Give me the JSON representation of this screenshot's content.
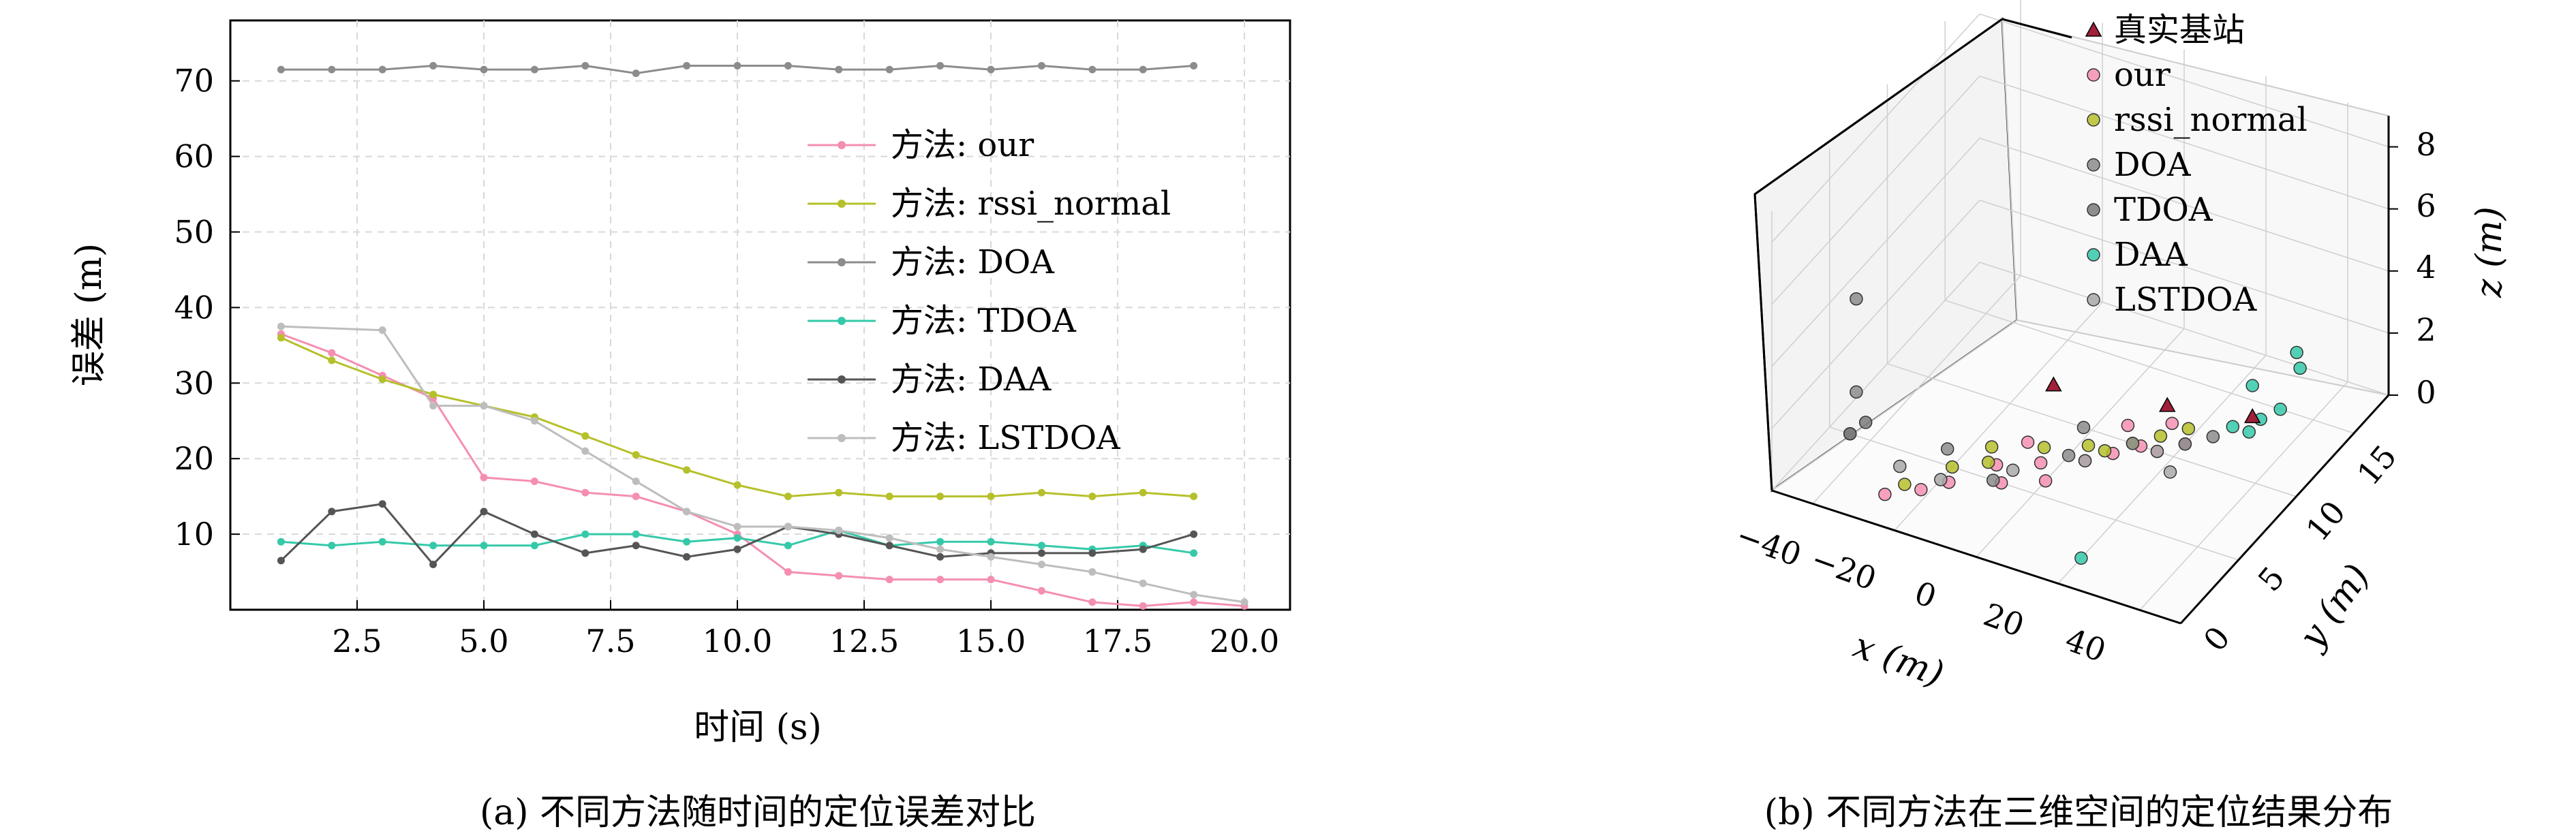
{
  "chart_data": [
    {
      "type": "line",
      "xlabel": "时间 (s)",
      "ylabel": "误差 (m)",
      "caption": "(a) 不同方法随时间的定位误差对比",
      "xlim": [
        0,
        20.9
      ],
      "ylim": [
        0,
        78
      ],
      "xticks": [
        "2.5",
        "5.0",
        "7.5",
        "10.0",
        "12.5",
        "15.0",
        "17.5",
        "20.0"
      ],
      "yticks": [
        "10",
        "20",
        "30",
        "40",
        "50",
        "60",
        "70"
      ],
      "grid": true,
      "legend_position": "upper-right",
      "colors": {
        "our": "#f48fb1",
        "rssi_normal": "#b5c02a",
        "DOA": "#8c8c8c",
        "TDOA": "#35c9a9",
        "DAA": "#555555",
        "LSTDOA": "#bdbdbd"
      },
      "series": [
        {
          "name": "方法: our",
          "x": [
            1,
            2,
            3,
            4,
            5,
            6,
            7,
            8,
            9,
            10,
            11,
            12,
            13,
            14,
            15,
            16,
            17,
            18,
            19,
            20
          ],
          "values": [
            36.5,
            34,
            31,
            28,
            17.5,
            17,
            15.5,
            15,
            13,
            10,
            5,
            4.5,
            4,
            4,
            4,
            2.5,
            1,
            0.5,
            1,
            0.5
          ]
        },
        {
          "name": "方法: rssi_normal",
          "x": [
            1,
            2,
            3,
            4,
            5,
            6,
            7,
            8,
            9,
            10,
            11,
            12,
            13,
            14,
            15,
            16,
            17,
            18,
            19
          ],
          "values": [
            36,
            33,
            30.5,
            28.5,
            27,
            25.5,
            23,
            20.5,
            18.5,
            16.5,
            15,
            15.5,
            15,
            15,
            15,
            15.5,
            15,
            15.5,
            15
          ]
        },
        {
          "name": "方法: DOA",
          "x": [
            1,
            2,
            3,
            4,
            5,
            6,
            7,
            8,
            9,
            10,
            11,
            12,
            13,
            14,
            15,
            16,
            17,
            18,
            19
          ],
          "values": [
            71.5,
            71.5,
            71.5,
            72,
            71.5,
            71.5,
            72,
            71,
            72,
            72,
            72,
            71.5,
            71.5,
            72,
            71.5,
            72,
            71.5,
            71.5,
            72
          ]
        },
        {
          "name": "方法: TDOA",
          "x": [
            1,
            2,
            3,
            4,
            5,
            6,
            7,
            8,
            9,
            10,
            11,
            12,
            13,
            14,
            15,
            16,
            17,
            18,
            19
          ],
          "values": [
            9,
            8.5,
            9,
            8.5,
            8.5,
            8.5,
            10,
            10,
            9,
            9.5,
            8.5,
            10.5,
            8.5,
            9,
            9,
            8.5,
            8,
            8.5,
            7.5
          ]
        },
        {
          "name": "方法: DAA",
          "x": [
            1,
            2,
            3,
            4,
            5,
            6,
            7,
            8,
            9,
            10,
            11,
            12,
            13,
            14,
            15,
            16,
            17,
            18,
            19
          ],
          "values": [
            6.5,
            13,
            14,
            6,
            13,
            10,
            7.5,
            8.5,
            7,
            8,
            11,
            10,
            8.5,
            7,
            7.5,
            7.5,
            7.5,
            8,
            10
          ]
        },
        {
          "name": "方法: LSTDOA",
          "x": [
            1,
            3,
            4,
            5,
            6,
            7,
            8,
            9,
            10,
            11,
            12,
            13,
            14,
            15,
            16,
            17,
            18,
            19,
            20
          ],
          "values": [
            37.5,
            37,
            27,
            27,
            25,
            21,
            17,
            13,
            11,
            11,
            10.5,
            9.5,
            8,
            7,
            6,
            5,
            3.5,
            2,
            1
          ]
        }
      ]
    },
    {
      "type": "scatter",
      "caption": "(b) 不同方法在三维空间的定位结果分布",
      "xlabel": "x (m)",
      "ylabel": "y (m)",
      "zlabel": "z (m)",
      "xticks": [
        "−40",
        "−20",
        "0",
        "20",
        "40"
      ],
      "yticks": [
        "0",
        "5",
        "10",
        "15"
      ],
      "zticks": [
        "0",
        "2",
        "4",
        "6",
        "8"
      ],
      "legend": [
        {
          "label": "真实基站",
          "marker": "triangle",
          "color": "#a0203a"
        },
        {
          "label": "our",
          "marker": "circle",
          "color": "#f48fb1"
        },
        {
          "label": "rssi_normal",
          "marker": "circle",
          "color": "#b5c02a"
        },
        {
          "label": "DOA",
          "marker": "circle",
          "color": "#8c8c8c"
        },
        {
          "label": "TDOA",
          "marker": "circle",
          "color": "#7a7a7a"
        },
        {
          "label": "DAA",
          "marker": "circle",
          "color": "#35c9a9"
        },
        {
          "label": "LSTDOA",
          "marker": "circle",
          "color": "#a8a8a8"
        }
      ],
      "points": {
        "真实基站": [
          [
            -15,
            12,
            0
          ],
          [
            10,
            13,
            0
          ],
          [
            28,
            14,
            0
          ]
        ],
        "our": [
          [
            -28,
            2,
            0
          ],
          [
            -22,
            3,
            0
          ],
          [
            -18,
            4,
            0
          ],
          [
            -12,
            6,
            0
          ],
          [
            -8,
            5,
            0
          ],
          [
            -4,
            7,
            0
          ],
          [
            0,
            6,
            0
          ],
          [
            4,
            8,
            0
          ],
          [
            8,
            9,
            0
          ],
          [
            12,
            10,
            0
          ],
          [
            16,
            10,
            0
          ],
          [
            20,
            11,
            0
          ],
          [
            -10,
            8,
            0
          ],
          [
            6,
            11,
            0
          ],
          [
            14,
            12,
            0
          ]
        ],
        "rssi_normal": [
          [
            -26,
            3,
            0
          ],
          [
            -20,
            5,
            0
          ],
          [
            -14,
            6,
            0
          ],
          [
            -6,
            8,
            0
          ],
          [
            2,
            9,
            0
          ],
          [
            10,
            10,
            0
          ],
          [
            14,
            11,
            0
          ],
          [
            18,
            12,
            0
          ],
          [
            -16,
            7,
            0
          ],
          [
            6,
            9,
            0
          ]
        ],
        "DOA": [
          [
            -35,
            2,
            6
          ],
          [
            -35,
            2,
            3
          ],
          [
            -24,
            6,
            0
          ],
          [
            -10,
            5,
            0
          ],
          [
            0,
            8,
            0
          ],
          [
            10,
            10,
            0
          ],
          [
            20,
            11,
            0
          ],
          [
            24,
            12,
            0
          ],
          [
            -2,
            10,
            0
          ]
        ],
        "TDOA": [
          [
            -45,
            5,
            0
          ],
          [
            -45,
            5,
            0
          ],
          [
            -44,
            6,
            0
          ]
        ],
        "DAA": [
          [
            28,
            14,
            1
          ],
          [
            30,
            14,
            0
          ],
          [
            32,
            15,
            0
          ],
          [
            26,
            13,
            0
          ],
          [
            34,
            16,
            1
          ],
          [
            30,
            13,
            0
          ],
          [
            36,
            15,
            2
          ],
          [
            20,
            2,
            0
          ]
        ],
        "LSTDOA": [
          [
            -20,
            4,
            0
          ],
          [
            -8,
            6,
            0
          ],
          [
            4,
            8,
            0
          ],
          [
            16,
            10,
            0
          ],
          [
            22,
            9,
            0
          ],
          [
            -30,
            4,
            0
          ]
        ]
      }
    }
  ]
}
